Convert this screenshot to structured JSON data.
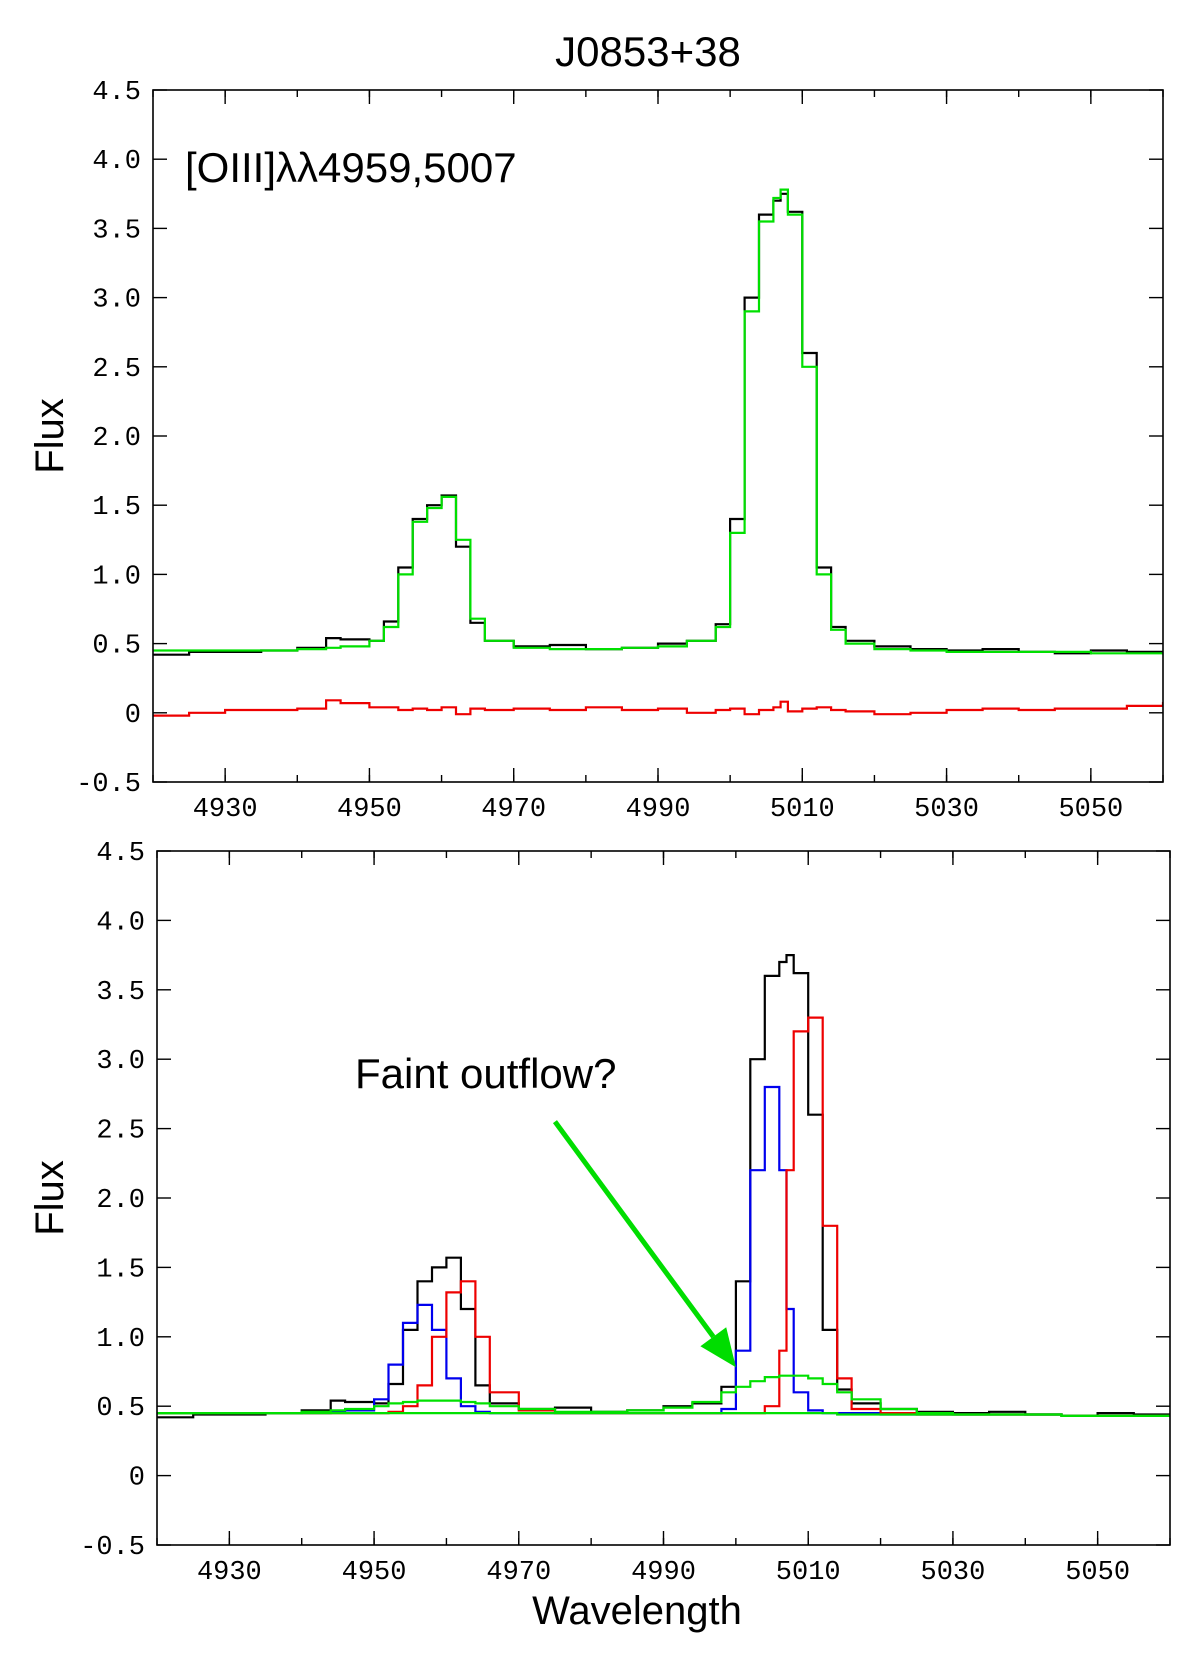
{
  "chart_data": [
    {
      "type": "line",
      "title": "J0853+38",
      "annotation": "[OIII]λλ4959,5007",
      "xlabel": "",
      "ylabel": "Flux",
      "xlim": [
        4920,
        5060
      ],
      "ylim": [
        -0.5,
        4.5
      ],
      "xticks": [
        "4930",
        "4950",
        "4970",
        "4990",
        "5010",
        "5030",
        "5050"
      ],
      "yticks": [
        "4.5",
        "4.0",
        "3.5",
        "3.0",
        "2.5",
        "2.0",
        "1.5",
        "1.0",
        "0.5",
        "0",
        "-0.5"
      ],
      "grid": false,
      "step": true,
      "x": [
        4920,
        4925,
        4930,
        4935,
        4940,
        4944,
        4946,
        4950,
        4952,
        4954,
        4956,
        4958,
        4960,
        4962,
        4964,
        4966,
        4970,
        4975,
        4980,
        4985,
        4990,
        4994,
        4998,
        5000,
        5002,
        5004,
        5006,
        5007,
        5008,
        5010,
        5012,
        5014,
        5016,
        5020,
        5025,
        5030,
        5035,
        5040,
        5045,
        5050,
        5055,
        5060
      ],
      "series": [
        {
          "color": "#000000",
          "values": [
            0.42,
            0.44,
            0.44,
            0.45,
            0.47,
            0.54,
            0.53,
            0.52,
            0.66,
            1.05,
            1.4,
            1.5,
            1.57,
            1.2,
            0.65,
            0.52,
            0.48,
            0.49,
            0.46,
            0.47,
            0.5,
            0.52,
            0.64,
            1.4,
            3.0,
            3.6,
            3.7,
            3.75,
            3.62,
            2.6,
            1.05,
            0.62,
            0.52,
            0.48,
            0.46,
            0.45,
            0.46,
            0.44,
            0.43,
            0.45,
            0.44,
            0.43
          ]
        },
        {
          "color": "#00e000",
          "values": [
            0.45,
            0.45,
            0.45,
            0.45,
            0.46,
            0.47,
            0.48,
            0.52,
            0.62,
            1.0,
            1.38,
            1.48,
            1.56,
            1.25,
            0.68,
            0.52,
            0.47,
            0.46,
            0.46,
            0.47,
            0.48,
            0.52,
            0.62,
            1.3,
            2.9,
            3.55,
            3.72,
            3.78,
            3.6,
            2.5,
            1.0,
            0.6,
            0.5,
            0.46,
            0.45,
            0.44,
            0.44,
            0.44,
            0.44,
            0.43,
            0.43,
            0.43
          ]
        },
        {
          "color": "#ee0000",
          "values": [
            -0.02,
            0.0,
            0.02,
            0.02,
            0.03,
            0.09,
            0.07,
            0.04,
            0.04,
            0.02,
            0.03,
            0.02,
            0.04,
            -0.01,
            0.03,
            0.02,
            0.03,
            0.02,
            0.04,
            0.02,
            0.03,
            0.0,
            0.02,
            0.03,
            -0.01,
            0.02,
            0.04,
            0.08,
            0.01,
            0.03,
            0.04,
            0.02,
            0.01,
            -0.01,
            0.0,
            0.02,
            0.03,
            0.02,
            0.03,
            0.03,
            0.05,
            0.07
          ]
        }
      ]
    },
    {
      "type": "line",
      "title": "",
      "annotation": "Faint outflow?",
      "xlabel": "Wavelength",
      "ylabel": "Flux",
      "xlim": [
        4920,
        5060
      ],
      "ylim": [
        -0.5,
        4.5
      ],
      "xticks": [
        "4930",
        "4950",
        "4970",
        "4990",
        "5010",
        "5030",
        "5050"
      ],
      "yticks": [
        "4.5",
        "4.0",
        "3.5",
        "3.0",
        "2.5",
        "2.0",
        "1.5",
        "1.0",
        "0.5",
        "0",
        "-0.5"
      ],
      "grid": false,
      "step": true,
      "arrow": {
        "from": [
          4975,
          2.55
        ],
        "to": [
          5000,
          0.78
        ],
        "color": "#00dd00"
      },
      "x": [
        4920,
        4925,
        4930,
        4935,
        4940,
        4944,
        4946,
        4950,
        4952,
        4954,
        4956,
        4958,
        4960,
        4962,
        4964,
        4966,
        4970,
        4975,
        4980,
        4985,
        4990,
        4994,
        4998,
        5000,
        5002,
        5004,
        5006,
        5007,
        5008,
        5010,
        5012,
        5014,
        5016,
        5020,
        5025,
        5030,
        5035,
        5040,
        5045,
        5050,
        5055,
        5060
      ],
      "series": [
        {
          "color": "#000000",
          "values": [
            0.42,
            0.44,
            0.44,
            0.45,
            0.47,
            0.54,
            0.53,
            0.52,
            0.66,
            1.05,
            1.4,
            1.5,
            1.57,
            1.2,
            0.65,
            0.52,
            0.48,
            0.49,
            0.46,
            0.47,
            0.5,
            0.52,
            0.64,
            1.4,
            3.0,
            3.6,
            3.7,
            3.75,
            3.62,
            2.6,
            1.05,
            0.62,
            0.52,
            0.48,
            0.46,
            0.45,
            0.46,
            0.44,
            0.43,
            0.45,
            0.44,
            0.43
          ]
        },
        {
          "color": "#0000ee",
          "values": [
            0.45,
            0.45,
            0.45,
            0.45,
            0.45,
            0.46,
            0.47,
            0.55,
            0.8,
            1.1,
            1.23,
            1.05,
            0.7,
            0.5,
            0.46,
            0.45,
            0.45,
            0.45,
            0.45,
            0.45,
            0.45,
            0.45,
            0.48,
            0.9,
            2.2,
            2.8,
            2.2,
            1.2,
            0.6,
            0.47,
            0.45,
            0.45,
            0.45,
            0.44,
            0.44,
            0.44,
            0.44,
            0.44,
            0.43,
            0.43,
            0.43,
            0.43
          ]
        },
        {
          "color": "#ee0000",
          "values": [
            0.45,
            0.45,
            0.45,
            0.45,
            0.45,
            0.45,
            0.45,
            0.45,
            0.46,
            0.5,
            0.65,
            1.0,
            1.32,
            1.4,
            1.0,
            0.6,
            0.47,
            0.45,
            0.45,
            0.45,
            0.45,
            0.45,
            0.45,
            0.45,
            0.45,
            0.5,
            0.9,
            2.2,
            3.2,
            3.3,
            1.8,
            0.7,
            0.48,
            0.45,
            0.44,
            0.44,
            0.44,
            0.44,
            0.43,
            0.43,
            0.43,
            0.43
          ]
        },
        {
          "color": "#00e000",
          "values": [
            0.45,
            0.45,
            0.45,
            0.45,
            0.46,
            0.47,
            0.48,
            0.5,
            0.52,
            0.53,
            0.54,
            0.54,
            0.54,
            0.53,
            0.52,
            0.5,
            0.48,
            0.46,
            0.46,
            0.47,
            0.49,
            0.53,
            0.6,
            0.64,
            0.68,
            0.71,
            0.72,
            0.72,
            0.72,
            0.7,
            0.66,
            0.6,
            0.55,
            0.48,
            0.45,
            0.44,
            0.44,
            0.44,
            0.43,
            0.43,
            0.43,
            0.43
          ]
        },
        {
          "color": "#00e000",
          "values": [
            0.45,
            0.45,
            0.45,
            0.45,
            0.45,
            0.45,
            0.45,
            0.45,
            0.45,
            0.45,
            0.45,
            0.45,
            0.45,
            0.45,
            0.45,
            0.45,
            0.45,
            0.45,
            0.45,
            0.45,
            0.45,
            0.45,
            0.45,
            0.45,
            0.45,
            0.45,
            0.45,
            0.45,
            0.45,
            0.45,
            0.45,
            0.44,
            0.44,
            0.44,
            0.44,
            0.44,
            0.44,
            0.44,
            0.43,
            0.43,
            0.43,
            0.43
          ]
        }
      ]
    }
  ]
}
